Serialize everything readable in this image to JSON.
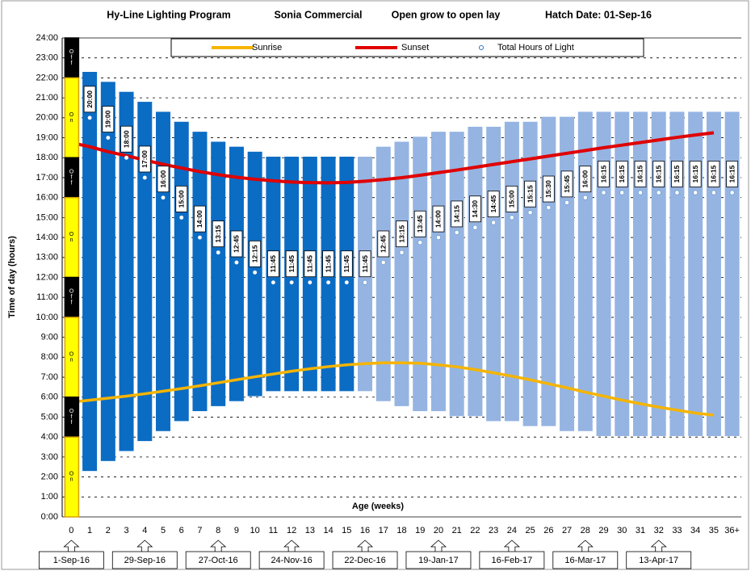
{
  "chart_data": {
    "type": "floating_bar",
    "title_parts": [
      "Hy-Line Lighting Program",
      "Sonia Commercial",
      "Open grow to open lay",
      "Hatch Date: 01-Sep-16"
    ],
    "x_label": "Age (weeks)",
    "y_label": "Time of day (hours)",
    "categories": [
      "0",
      "1",
      "2",
      "3",
      "4",
      "5",
      "6",
      "7",
      "8",
      "9",
      "10",
      "11",
      "12",
      "13",
      "14",
      "15",
      "16",
      "17",
      "18",
      "19",
      "20",
      "21",
      "22",
      "23",
      "24",
      "25",
      "26",
      "27",
      "28",
      "29",
      "30",
      "31",
      "32",
      "33",
      "34",
      "35",
      "36+"
    ],
    "bar_low": [
      null,
      2.3,
      2.8,
      3.3,
      3.8,
      4.3,
      4.8,
      5.3,
      5.55,
      5.8,
      6.05,
      6.3,
      6.3,
      6.3,
      6.3,
      6.3,
      6.3,
      5.8,
      5.55,
      5.3,
      5.3,
      5.05,
      5.05,
      4.8,
      4.8,
      4.55,
      4.55,
      4.3,
      4.3,
      4.05,
      4.05,
      4.05,
      4.05,
      4.05,
      4.05,
      4.05,
      4.05
    ],
    "bar_high": [
      null,
      22.3,
      21.8,
      21.3,
      20.8,
      20.3,
      19.8,
      19.3,
      18.8,
      18.55,
      18.3,
      18.05,
      18.05,
      18.05,
      18.05,
      18.05,
      18.05,
      18.55,
      18.8,
      19.05,
      19.3,
      19.3,
      19.55,
      19.55,
      19.8,
      19.8,
      20.05,
      20.05,
      20.3,
      20.3,
      20.3,
      20.3,
      20.3,
      20.3,
      20.3,
      20.3,
      20.3
    ],
    "bar_colors": [
      null,
      "#0b6cc4",
      "#0b6cc4",
      "#0b6cc4",
      "#0b6cc4",
      "#0b6cc4",
      "#0b6cc4",
      "#0b6cc4",
      "#0b6cc4",
      "#0b6cc4",
      "#0b6cc4",
      "#0b6cc4",
      "#0b6cc4",
      "#0b6cc4",
      "#0b6cc4",
      "#0b6cc4",
      "#95b4e2",
      "#95b4e2",
      "#95b4e2",
      "#95b4e2",
      "#95b4e2",
      "#95b4e2",
      "#95b4e2",
      "#95b4e2",
      "#95b4e2",
      "#95b4e2",
      "#95b4e2",
      "#95b4e2",
      "#95b4e2",
      "#95b4e2",
      "#95b4e2",
      "#95b4e2",
      "#95b4e2",
      "#95b4e2",
      "#95b4e2",
      "#95b4e2",
      "#95b4e2"
    ],
    "series": [
      {
        "name": "Sunrise",
        "color": "#f5b400",
        "kind": "line",
        "values": [
          5.75,
          5.85,
          5.95,
          6.05,
          6.17,
          6.3,
          6.43,
          6.57,
          6.72,
          6.87,
          7.02,
          7.16,
          7.3,
          7.42,
          7.53,
          7.62,
          7.68,
          7.72,
          7.72,
          7.7,
          7.62,
          7.52,
          7.38,
          7.22,
          7.05,
          6.87,
          6.67,
          6.47,
          6.25,
          6.05,
          5.85,
          5.67,
          5.5,
          5.35,
          5.2,
          5.1,
          null
        ]
      },
      {
        "name": "Sunset",
        "color": "#e00000",
        "kind": "line",
        "values": [
          18.75,
          18.55,
          18.3,
          18.1,
          17.88,
          17.67,
          17.48,
          17.3,
          17.15,
          17.02,
          16.92,
          16.84,
          16.78,
          16.75,
          16.74,
          16.76,
          16.82,
          16.9,
          17.0,
          17.12,
          17.25,
          17.38,
          17.52,
          17.66,
          17.8,
          17.94,
          18.08,
          18.22,
          18.36,
          18.5,
          18.63,
          18.76,
          18.89,
          19.02,
          19.14,
          19.25,
          null
        ]
      },
      {
        "name": "Total Hours of Light",
        "color": "#1f6fc0",
        "kind": "marker",
        "values": [
          null,
          20,
          19,
          18,
          17,
          16,
          15,
          14,
          13.25,
          12.75,
          12.25,
          11.75,
          11.75,
          11.75,
          11.75,
          11.75,
          11.75,
          12.75,
          13.25,
          13.75,
          14,
          14.25,
          14.5,
          14.75,
          15,
          15.25,
          15.5,
          15.75,
          16,
          16.25,
          16.25,
          16.25,
          16.25,
          16.25,
          16.25,
          16.25,
          16.25
        ],
        "value_labels": [
          null,
          "20:00",
          "19:00",
          "18:00",
          "17:00",
          "16:00",
          "15:00",
          "14:00",
          "13:15",
          "12:45",
          "12:15",
          "11:45",
          "11:45",
          "11:45",
          "11:45",
          "11:45",
          "11:45",
          "12:45",
          "13:15",
          "13:45",
          "14:00",
          "14:15",
          "14:30",
          "14:45",
          "15:00",
          "15:15",
          "15:30",
          "15:45",
          "16:00",
          "16:15",
          "16:15",
          "16:15",
          "16:15",
          "16:15",
          "16:15",
          "16:15",
          "16:15"
        ]
      }
    ],
    "schedule": [
      {
        "label": "Off",
        "from": 22,
        "to": 24,
        "color": "#000000"
      },
      {
        "label": "On",
        "from": 18,
        "to": 22,
        "color": "#ffff00"
      },
      {
        "label": "Off",
        "from": 16,
        "to": 18,
        "color": "#000000"
      },
      {
        "label": "On",
        "from": 12,
        "to": 16,
        "color": "#ffff00"
      },
      {
        "label": "Off",
        "from": 10,
        "to": 12,
        "color": "#000000"
      },
      {
        "label": "On",
        "from": 6,
        "to": 10,
        "color": "#ffff00"
      },
      {
        "label": "Off",
        "from": 4,
        "to": 6,
        "color": "#000000"
      },
      {
        "label": "On",
        "from": 0,
        "to": 4,
        "color": "#ffff00"
      }
    ],
    "dates": [
      "1-Sep-16",
      null,
      null,
      null,
      "29-Sep-16",
      null,
      null,
      null,
      "27-Oct-16",
      null,
      null,
      null,
      "24-Nov-16",
      null,
      null,
      null,
      "22-Dec-16",
      null,
      null,
      null,
      "19-Jan-17",
      null,
      null,
      null,
      "16-Feb-17",
      null,
      null,
      null,
      "16-Mar-17",
      null,
      null,
      null,
      "13-Apr-17",
      null,
      null,
      null,
      null
    ],
    "ylim": [
      0,
      24
    ],
    "yticks": [
      {
        "value": 0,
        "label": "0:00"
      },
      {
        "value": 1,
        "label": "1:00"
      },
      {
        "value": 2,
        "label": "2:00"
      },
      {
        "value": 3,
        "label": "3:00"
      },
      {
        "value": 4,
        "label": "4:00"
      },
      {
        "value": 5,
        "label": "5:00"
      },
      {
        "value": 6,
        "label": "6:00"
      },
      {
        "value": 7,
        "label": "7:00"
      },
      {
        "value": 8,
        "label": "8:00"
      },
      {
        "value": 9,
        "label": "9:00"
      },
      {
        "value": 10,
        "label": "10:00"
      },
      {
        "value": 11,
        "label": "11:00"
      },
      {
        "value": 12,
        "label": "12:00"
      },
      {
        "value": 13,
        "label": "13:00"
      },
      {
        "value": 14,
        "label": "14:00"
      },
      {
        "value": 15,
        "label": "15:00"
      },
      {
        "value": 16,
        "label": "16:00"
      },
      {
        "value": 17,
        "label": "17:00"
      },
      {
        "value": 18,
        "label": "18:00"
      },
      {
        "value": 19,
        "label": "19:00"
      },
      {
        "value": 20,
        "label": "20:00"
      },
      {
        "value": 21,
        "label": "21:00"
      },
      {
        "value": 22,
        "label": "22:00"
      },
      {
        "value": 23,
        "label": "23:00"
      },
      {
        "value": 24,
        "label": "24:00"
      }
    ],
    "grid": true
  }
}
